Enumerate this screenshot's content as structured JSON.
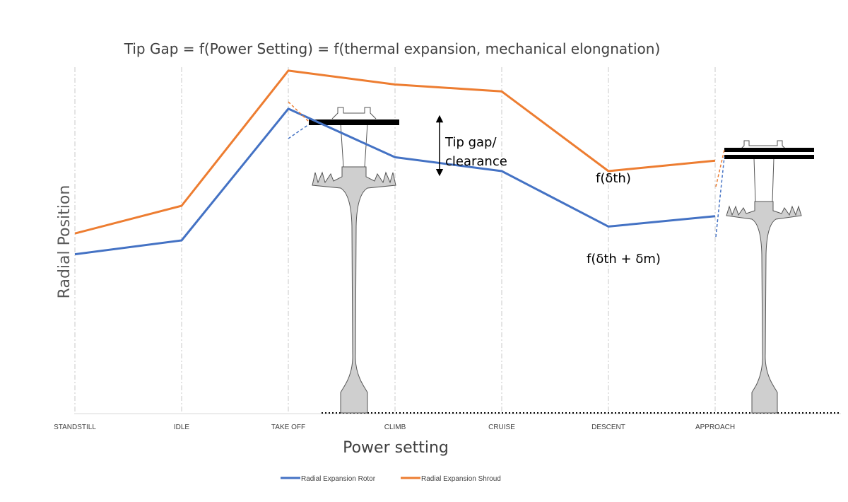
{
  "chart_data": {
    "type": "line",
    "title": "Tip Gap = f(Power Setting) = f(thermal expansion, mechanical elongnation)",
    "xlabel": "Power setting",
    "ylabel": "Radial Position",
    "categories": [
      "STANDSTILL",
      "IDLE",
      "TAKE OFF",
      "CLIMB",
      "CRUISE",
      "DESCENT",
      "APPROACH"
    ],
    "ylim": [
      0,
      100
    ],
    "grid": "vertical dashed lines at each category",
    "legend_position": "bottom",
    "series": [
      {
        "name": "Radial Expansion Rotor",
        "color": "#4472C4",
        "values": [
          46,
          50,
          88,
          74,
          70,
          54,
          57
        ]
      },
      {
        "name": "Radial Expansion Shroud",
        "color": "#ED7D31",
        "values": [
          52,
          60,
          99,
          95,
          93,
          70,
          73
        ]
      }
    ],
    "annotations": {
      "gap_label_line1": "Tip gap/",
      "gap_label_line2": "clearance",
      "shroud_label": "f(δth)",
      "rotor_label": "f(δth + δm)"
    }
  }
}
